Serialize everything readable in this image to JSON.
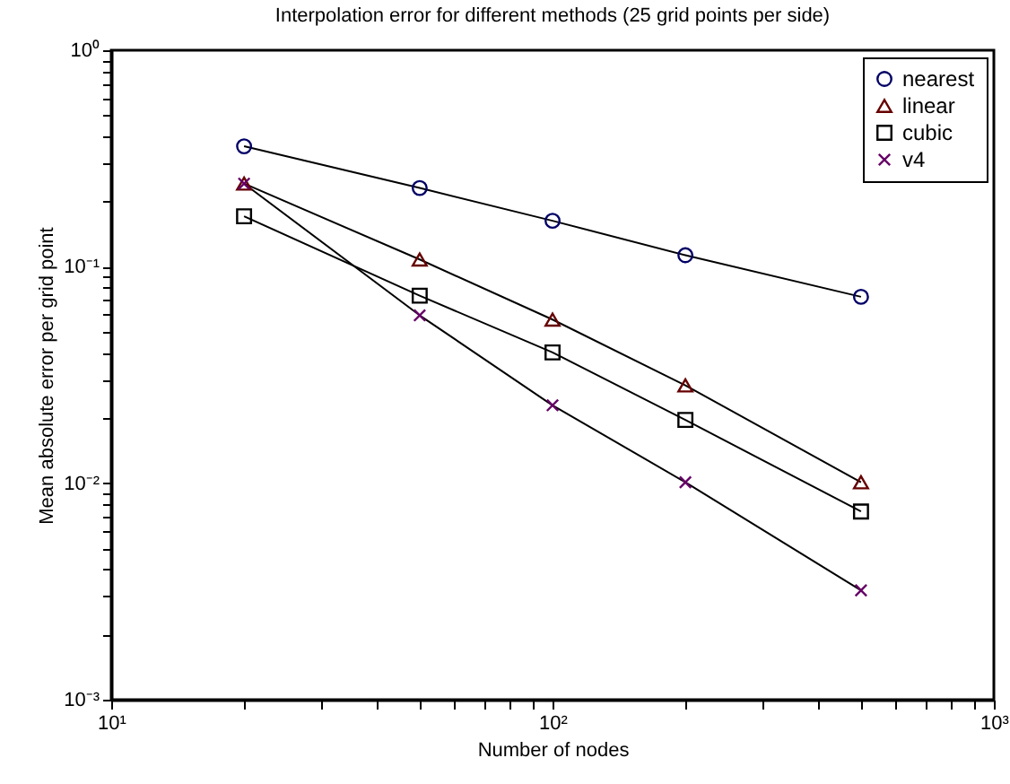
{
  "chart_data": {
    "type": "line",
    "title": "Interpolation error for different methods (25 grid points per side)",
    "xlabel": "Number of nodes",
    "ylabel": "Mean absolute error per grid point",
    "x": [
      20,
      50,
      100,
      200,
      500
    ],
    "series": [
      {
        "name": "nearest",
        "color": "#000066",
        "marker": "circle",
        "values": [
          0.36,
          0.231,
          0.163,
          0.113,
          0.0726
        ]
      },
      {
        "name": "linear",
        "color": "#660000",
        "marker": "triangle",
        "values": [
          0.242,
          0.108,
          0.057,
          0.0283,
          0.0101
        ]
      },
      {
        "name": "cubic",
        "color": "#000000",
        "marker": "square",
        "values": [
          0.171,
          0.0735,
          0.0402,
          0.0196,
          0.0074
        ]
      },
      {
        "name": "v4",
        "color": "#660066",
        "marker": "cross",
        "values": [
          0.242,
          0.0596,
          0.0229,
          0.0101,
          0.0032
        ]
      }
    ],
    "log": "xy",
    "xlim": [
      10,
      1000
    ],
    "ylim": [
      0.001,
      1
    ],
    "xticks": [
      {
        "value": 10,
        "label": "10¹"
      },
      {
        "value": 20,
        "label": null
      },
      {
        "value": 30,
        "label": null
      },
      {
        "value": 40,
        "label": null
      },
      {
        "value": 50,
        "label": null
      },
      {
        "value": 60,
        "label": null
      },
      {
        "value": 70,
        "label": null
      },
      {
        "value": 80,
        "label": null
      },
      {
        "value": 90,
        "label": null
      },
      {
        "value": 100,
        "label": "10²"
      },
      {
        "value": 200,
        "label": null
      },
      {
        "value": 300,
        "label": null
      },
      {
        "value": 400,
        "label": null
      },
      {
        "value": 500,
        "label": null
      },
      {
        "value": 600,
        "label": null
      },
      {
        "value": 700,
        "label": null
      },
      {
        "value": 800,
        "label": null
      },
      {
        "value": 900,
        "label": null
      },
      {
        "value": 1000,
        "label": "10³"
      }
    ],
    "yticks": [
      {
        "value": 0.001,
        "label": "10⁻³"
      },
      {
        "value": 0.002,
        "label": null
      },
      {
        "value": 0.003,
        "label": null
      },
      {
        "value": 0.004,
        "label": null
      },
      {
        "value": 0.005,
        "label": null
      },
      {
        "value": 0.006,
        "label": null
      },
      {
        "value": 0.007,
        "label": null
      },
      {
        "value": 0.008,
        "label": null
      },
      {
        "value": 0.009,
        "label": null
      },
      {
        "value": 0.01,
        "label": "10⁻²"
      },
      {
        "value": 0.02,
        "label": null
      },
      {
        "value": 0.03,
        "label": null
      },
      {
        "value": 0.04,
        "label": null
      },
      {
        "value": 0.05,
        "label": null
      },
      {
        "value": 0.06,
        "label": null
      },
      {
        "value": 0.07,
        "label": null
      },
      {
        "value": 0.08,
        "label": null
      },
      {
        "value": 0.09,
        "label": null
      },
      {
        "value": 0.1,
        "label": "10⁻¹"
      },
      {
        "value": 0.2,
        "label": null
      },
      {
        "value": 0.3,
        "label": null
      },
      {
        "value": 0.4,
        "label": null
      },
      {
        "value": 0.5,
        "label": null
      },
      {
        "value": 0.6,
        "label": null
      },
      {
        "value": 0.7,
        "label": null
      },
      {
        "value": 0.8,
        "label": null
      },
      {
        "value": 0.9,
        "label": null
      },
      {
        "value": 1,
        "label": "10⁰"
      }
    ],
    "grid": false,
    "legend": "top right"
  }
}
